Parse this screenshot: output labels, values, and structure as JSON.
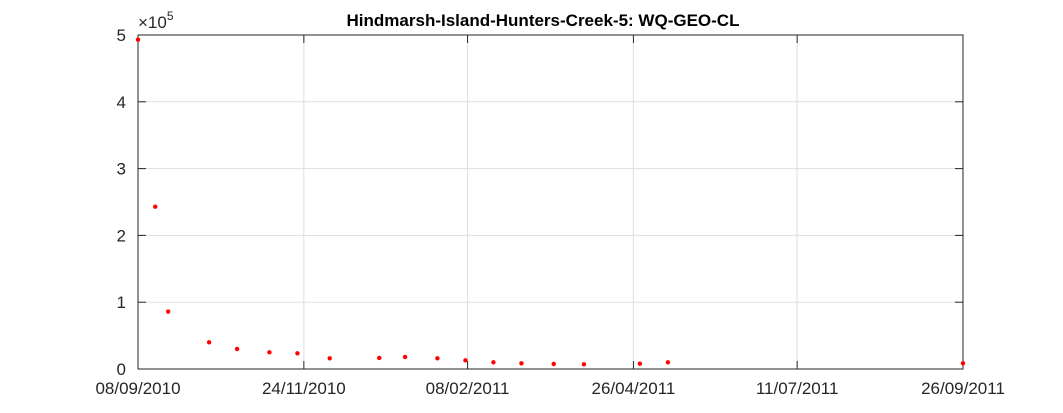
{
  "chart_data": {
    "type": "scatter",
    "title": "Hindmarsh-Island-Hunters-Creek-5: WQ-GEO-CL",
    "xlabel": "",
    "ylabel": "",
    "x_type": "date",
    "xlim": [
      "2010-09-08",
      "2011-09-26"
    ],
    "ylim": [
      0,
      500000
    ],
    "grid": true,
    "legend": "none",
    "y_exponent_label": "×10",
    "y_exponent": "5",
    "x_ticks": [
      {
        "value": "2010-09-08",
        "label": "08/09/2010"
      },
      {
        "value": "2010-11-24",
        "label": "24/11/2010"
      },
      {
        "value": "2011-02-08",
        "label": "08/02/2011"
      },
      {
        "value": "2011-04-26",
        "label": "26/04/2011"
      },
      {
        "value": "2011-07-11",
        "label": "11/07/2011"
      },
      {
        "value": "2011-09-26",
        "label": "26/09/2011"
      }
    ],
    "y_ticks": [
      {
        "value": 0,
        "label": "0"
      },
      {
        "value": 100000,
        "label": "1"
      },
      {
        "value": 200000,
        "label": "2"
      },
      {
        "value": 300000,
        "label": "3"
      },
      {
        "value": 400000,
        "label": "4"
      },
      {
        "value": 500000,
        "label": "5"
      }
    ],
    "series": [
      {
        "color": "#ff0000",
        "points": [
          {
            "x": "2010-09-08",
            "y": 493000
          },
          {
            "x": "2010-09-16",
            "y": 243000
          },
          {
            "x": "2010-09-22",
            "y": 86000
          },
          {
            "x": "2010-10-11",
            "y": 40000
          },
          {
            "x": "2010-10-24",
            "y": 30000
          },
          {
            "x": "2010-11-08",
            "y": 25000
          },
          {
            "x": "2010-11-21",
            "y": 23500
          },
          {
            "x": "2010-12-06",
            "y": 16000
          },
          {
            "x": "2010-12-29",
            "y": 16500
          },
          {
            "x": "2011-01-10",
            "y": 18000
          },
          {
            "x": "2011-01-25",
            "y": 16000
          },
          {
            "x": "2011-02-07",
            "y": 13000
          },
          {
            "x": "2011-02-20",
            "y": 10000
          },
          {
            "x": "2011-03-05",
            "y": 8500
          },
          {
            "x": "2011-03-20",
            "y": 7500
          },
          {
            "x": "2011-04-03",
            "y": 7000
          },
          {
            "x": "2011-04-29",
            "y": 8000
          },
          {
            "x": "2011-05-12",
            "y": 10000
          },
          {
            "x": "2011-09-26",
            "y": 8500
          }
        ]
      }
    ]
  }
}
